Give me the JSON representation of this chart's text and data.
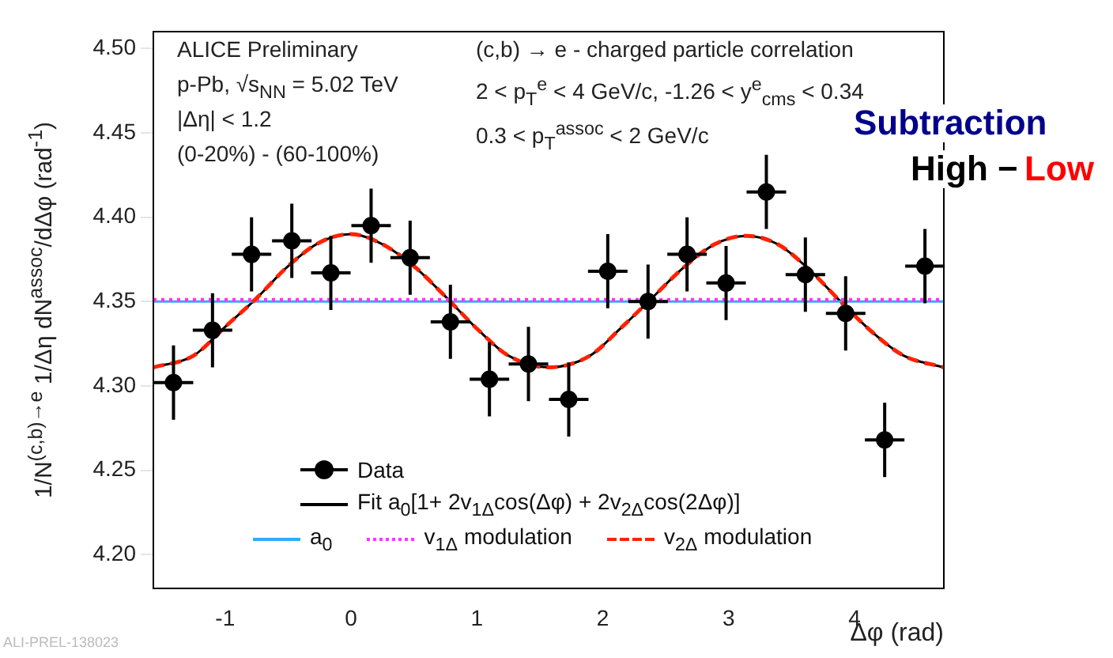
{
  "chart_data": {
    "type": "scatter",
    "xlabel": "Δφ (rad)",
    "ylabel": "1/N$^{(c,b)→e}$ 1/Δη dN$^{assoc}$/dΔφ (rad$^{-1}$)",
    "annotations": [
      "ALICE Preliminary",
      "p-Pb, √s$_{NN}$ = 5.02 TeV",
      "|Δη| < 1.2",
      "(0-20%) - (60-100%)",
      "(c,b) → e - charged particle correlation",
      "2 < p$_{T}$$^{e}$ < 4 GeV/c, -1.26 < y$^{e}$$_{cms}$ < 0.34",
      "0.3 < p$_{T}$$^{assoc}$ < 2 GeV/c",
      "Subtraction",
      "High −",
      "Low",
      "ALI-PREL-138023"
    ],
    "xlim": [
      -1.57,
      4.71
    ],
    "ylim": [
      4.18,
      4.51
    ],
    "xticks": [
      -1,
      0,
      1,
      2,
      3,
      4
    ],
    "yticks": [
      {
        "value": 4.2,
        "label": "4.20"
      },
      {
        "value": 4.25,
        "label": "4.25"
      },
      {
        "value": 4.3,
        "label": "4.30"
      },
      {
        "value": 4.35,
        "label": "4.35"
      },
      {
        "value": 4.4,
        "label": "4.40"
      },
      {
        "value": 4.45,
        "label": "4.45"
      },
      {
        "value": 4.5,
        "label": "4.50"
      }
    ],
    "grid": false,
    "legend": "bottom",
    "series": [
      {
        "name": "Data",
        "type": "scatter",
        "color": "#000000",
        "marker": "circle",
        "x": [
          -1.41,
          -1.1,
          -0.79,
          -0.47,
          -0.16,
          0.16,
          0.47,
          0.79,
          1.1,
          1.41,
          1.73,
          2.04,
          2.36,
          2.67,
          2.98,
          3.3,
          3.61,
          3.93,
          4.24,
          4.56
        ],
        "values": [
          4.302,
          4.333,
          4.378,
          4.386,
          4.367,
          4.395,
          4.376,
          4.338,
          4.304,
          4.313,
          4.292,
          4.368,
          4.35,
          4.378,
          4.361,
          4.415,
          4.366,
          4.343,
          4.268,
          4.371
        ],
        "errors": [
          0.022,
          0.022,
          0.022,
          0.022,
          0.022,
          0.022,
          0.022,
          0.022,
          0.022,
          0.022,
          0.022,
          0.022,
          0.022,
          0.022,
          0.022,
          0.022,
          0.022,
          0.022,
          0.022,
          0.022
        ],
        "xerrors": [
          0.157,
          0.157,
          0.157,
          0.157,
          0.157,
          0.157,
          0.157,
          0.157,
          0.157,
          0.157,
          0.157,
          0.157,
          0.157,
          0.157,
          0.157,
          0.157,
          0.157,
          0.157,
          0.157,
          0.157
        ]
      },
      {
        "name": "Fit a$_{0}$[1+ 2v$_{1Δ}$cos(Δφ) + 2v$_{2Δ}$cos(2Δφ)]",
        "type": "line",
        "color": "#000000",
        "line_style": "solid",
        "x": [
          -1.57,
          -1.25,
          -1.0,
          -0.75,
          -0.5,
          -0.25,
          0,
          0.25,
          0.5,
          0.75,
          1.0,
          1.25,
          1.57,
          1.9,
          2.14,
          2.39,
          2.64,
          2.89,
          3.14,
          3.39,
          3.64,
          3.89,
          4.14,
          4.39,
          4.71
        ],
        "values": [
          4.311,
          4.318,
          4.335,
          4.352,
          4.371,
          4.385,
          4.39,
          4.384,
          4.371,
          4.353,
          4.334,
          4.318,
          4.311,
          4.318,
          4.334,
          4.352,
          4.37,
          4.384,
          4.389,
          4.384,
          4.369,
          4.35,
          4.332,
          4.318,
          4.311
        ]
      },
      {
        "name": "a$_{0}$",
        "type": "line",
        "color": "#33aaff",
        "line_style": "solid",
        "x": [
          -1.57,
          4.71
        ],
        "values": [
          4.35,
          4.35
        ]
      },
      {
        "name": "v$_{1Δ}$ modulation",
        "type": "line",
        "color": "#ff33ff",
        "line_style": "dotted",
        "x": [
          -1.57,
          4.71
        ],
        "values": [
          4.351,
          4.351
        ]
      },
      {
        "name": "v$_{2Δ}$ modulation",
        "type": "line",
        "color": "#ff2200",
        "line_style": "dashed",
        "x": [
          -1.57,
          -1.25,
          -1.0,
          -0.75,
          -0.5,
          -0.25,
          0,
          0.25,
          0.5,
          0.75,
          1.0,
          1.25,
          1.57,
          1.9,
          2.14,
          2.39,
          2.64,
          2.89,
          3.14,
          3.39,
          3.64,
          3.89,
          4.14,
          4.39,
          4.71
        ],
        "values": [
          4.311,
          4.318,
          4.335,
          4.352,
          4.371,
          4.385,
          4.39,
          4.384,
          4.371,
          4.353,
          4.334,
          4.318,
          4.311,
          4.318,
          4.334,
          4.352,
          4.37,
          4.384,
          4.389,
          4.384,
          4.369,
          4.35,
          4.332,
          4.318,
          4.311
        ]
      }
    ]
  }
}
